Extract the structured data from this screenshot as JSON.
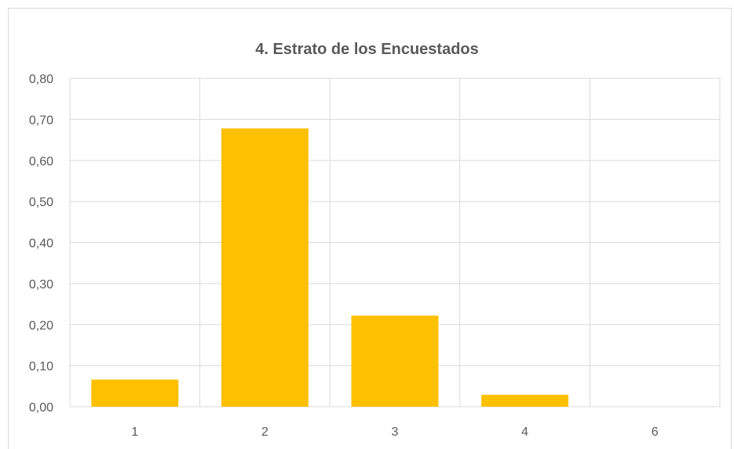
{
  "chart_data": {
    "type": "bar",
    "title": "4. Estrato de los Encuestados",
    "categories": [
      "1",
      "2",
      "3",
      "4",
      "6"
    ],
    "values": [
      0.066,
      0.678,
      0.222,
      0.029,
      0.0
    ],
    "ylim": [
      0,
      0.8
    ],
    "yticks": [
      "0,00",
      "0,10",
      "0,20",
      "0,30",
      "0,40",
      "0,50",
      "0,60",
      "0,70",
      "0,80"
    ],
    "grid": "both",
    "legend": "none",
    "bar_color": "#FFC000",
    "grid_color": "#D9D9D9",
    "xlabel": "",
    "ylabel": ""
  }
}
